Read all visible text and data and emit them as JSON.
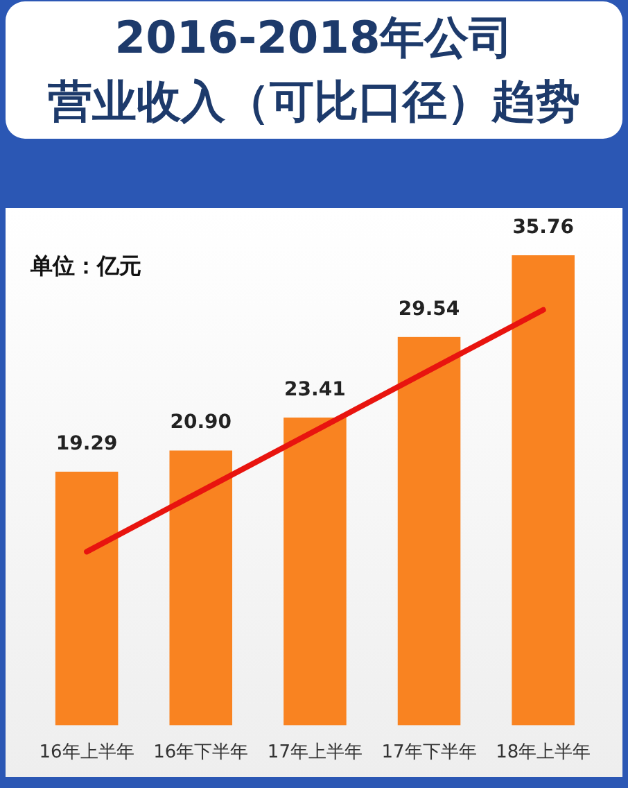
{
  "chart_data": {
    "type": "bar",
    "title": "2016-2018年公司营业收入（可比口径）趋势",
    "annotations": [
      "单位：亿元"
    ],
    "categories": [
      "16年上半年",
      "16年下半年",
      "17年上半年",
      "17年下半年",
      "18年上半年"
    ],
    "series": [
      {
        "color": "#f98321",
        "values": [
          19.29,
          20.9,
          23.41,
          29.54,
          35.76
        ],
        "value_labels": [
          "19.29",
          "20.90",
          "23.41",
          "29.54",
          "35.76"
        ]
      },
      {
        "type": "line",
        "x": [
          "16年上半年",
          "18年上半年"
        ],
        "color": "#e8140f",
        "values": [
          13.2,
          31.6
        ]
      }
    ]
  }
}
